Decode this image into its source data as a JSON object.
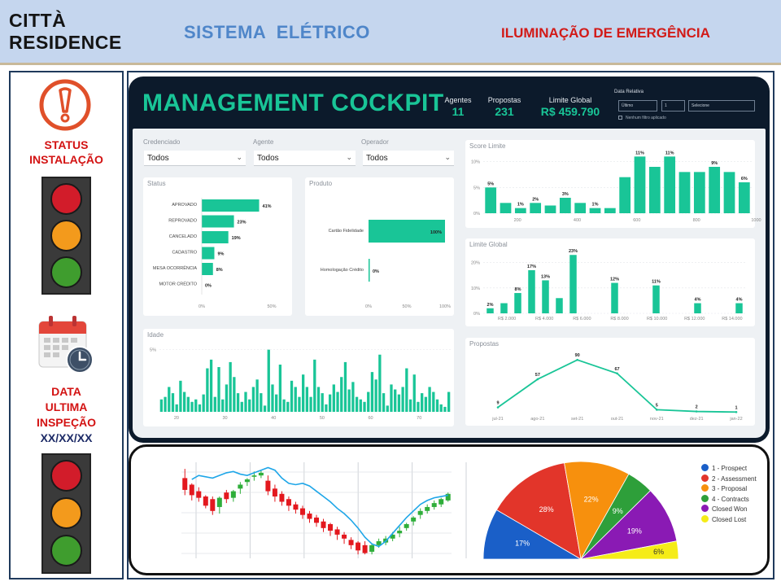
{
  "header": {
    "brand_line1": "CITTÀ",
    "brand_line2": "RESIDENCE",
    "system_title": "SISTEMA  ELÉTRICO",
    "module_title": "ILUMINAÇÃO DE EMERGÊNCIA"
  },
  "left_panel": {
    "status_line1": "STATUS",
    "status_line2": "INSTALAÇÃO",
    "inspection_line1": "DATA",
    "inspection_line2": "ULTIMA",
    "inspection_line3": "INSPEÇÃO",
    "inspection_date": "XX/XX/XX"
  },
  "cockpit": {
    "title": "MANAGEMENT COCKPIT",
    "kpis": [
      {
        "label": "Agentes",
        "value": "11"
      },
      {
        "label": "Propostas",
        "value": "231"
      },
      {
        "label": "Limite Global",
        "value": "R$ 459.790"
      }
    ],
    "date_filter": {
      "label": "Data Relativa",
      "period": "Último",
      "count": "1",
      "unit": "Selecione",
      "checkbox_label": "Nenhum filtro aplicado"
    },
    "filters": [
      {
        "label": "Credenciado",
        "value": "Todos"
      },
      {
        "label": "Agente",
        "value": "Todos"
      },
      {
        "label": "Operador",
        "value": "Todos"
      }
    ]
  },
  "colors": {
    "accent": "#19c597",
    "dark_bg": "#0c1a2b",
    "header_bg": "#c5d6ee",
    "alert_red": "#d21a17",
    "title_blue": "#4f86c9"
  },
  "icons": {
    "status": "alert-circle-icon",
    "inspection": "calendar-clock-icon"
  },
  "chart_data": [
    {
      "type": "bar",
      "orientation": "horizontal",
      "title": "Status",
      "categories": [
        "APROVADO",
        "REPROVADO",
        "CANCELADO",
        "CADASTRO",
        "MESA OCORRÊNCIA",
        "MOTOR CRÉDITO"
      ],
      "values": [
        41,
        23,
        19,
        9,
        8,
        0
      ],
      "value_labels": [
        "41%",
        "23%",
        "19%",
        "9%",
        "8%",
        "0%"
      ],
      "xticks": [
        "0%",
        "50%"
      ],
      "xlim": [
        0,
        50
      ]
    },
    {
      "type": "bar",
      "orientation": "horizontal",
      "title": "Produto",
      "categories": [
        "Cartão Fidelidade",
        "Homologação Crédito"
      ],
      "values": [
        100,
        0
      ],
      "value_labels": [
        "100%",
        "0%"
      ],
      "xticks": [
        "0%",
        "50%",
        "100%"
      ],
      "xlim": [
        0,
        100
      ]
    },
    {
      "type": "bar",
      "title": "Score Limite",
      "x": [
        110,
        160,
        210,
        260,
        310,
        360,
        410,
        460,
        510,
        560,
        610,
        660,
        710,
        760,
        810,
        860,
        910,
        960
      ],
      "values": [
        5,
        2,
        1,
        2,
        1.5,
        3,
        2,
        1,
        1,
        7,
        11,
        9,
        11,
        8,
        8,
        9,
        8,
        6
      ],
      "value_labels": [
        {
          "x": 110,
          "text": "5%"
        },
        {
          "x": 210,
          "text": "1%"
        },
        {
          "x": 260,
          "text": "2%"
        },
        {
          "x": 360,
          "text": "3%"
        },
        {
          "x": 460,
          "text": "1%"
        },
        {
          "x": 610,
          "text": "11%"
        },
        {
          "x": 710,
          "text": "11%"
        },
        {
          "x": 860,
          "text": "9%"
        },
        {
          "x": 960,
          "text": "6%"
        }
      ],
      "xticks": [
        "200",
        "400",
        "600",
        "800",
        "1000"
      ],
      "xtick_values": [
        200,
        400,
        600,
        800,
        1000
      ],
      "yticks": [
        "0%",
        "5%",
        "10%"
      ],
      "ylim": [
        0,
        12
      ]
    },
    {
      "type": "bar",
      "title": "Limite Global",
      "values": [
        2,
        4,
        8,
        17,
        13,
        6,
        23,
        0,
        0,
        12,
        0,
        0,
        11,
        0,
        0,
        4,
        0,
        0,
        4
      ],
      "value_labels": [
        {
          "index": 0,
          "text": "2%"
        },
        {
          "index": 2,
          "text": "8%"
        },
        {
          "index": 3,
          "text": "17%"
        },
        {
          "index": 4,
          "text": "13%"
        },
        {
          "index": 6,
          "text": "23%"
        },
        {
          "index": 9,
          "text": "12%"
        },
        {
          "index": 12,
          "text": "11%"
        },
        {
          "index": 15,
          "text": "4%"
        },
        {
          "index": 18,
          "text": "4%"
        }
      ],
      "xticks": [
        "R$ 2.000",
        "R$ 4.000",
        "R$ 6.000",
        "R$ 8.000",
        "R$ 10.000",
        "R$ 12.000",
        "R$ 14.000"
      ],
      "xtick_values": [
        2000,
        4000,
        6000,
        8000,
        10000,
        12000,
        14000
      ],
      "yticks": [
        "0%",
        "10%",
        "20%"
      ],
      "ylim": [
        0,
        25
      ]
    },
    {
      "type": "bar",
      "title": "Idade",
      "values": [
        1,
        1.2,
        2,
        1.5,
        0.6,
        2.5,
        1.6,
        1.2,
        0.8,
        1,
        0.6,
        1.4,
        3.5,
        4.2,
        1.2,
        3.6,
        1,
        2.2,
        4,
        2.8,
        1.5,
        0.8,
        1.6,
        1,
        2,
        2.6,
        1.5,
        0.5,
        5,
        2.2,
        1.4,
        3.8,
        1,
        0.8,
        2.5,
        2,
        1.2,
        3,
        2,
        1.2,
        4.2,
        2,
        1.5,
        0.6,
        1.4,
        2.2,
        1.6,
        2.8,
        4,
        1.8,
        2.4,
        1.2,
        1,
        0.8,
        1.6,
        3.2,
        2.6,
        4.6,
        1.5,
        0.5,
        2.2,
        1.8,
        1.4,
        2,
        3.5,
        1,
        3,
        0.8,
        1.5,
        1.2,
        2,
        1.6,
        1,
        0.6,
        0.4,
        1.6
      ],
      "xticks": [
        "20",
        "30",
        "40",
        "50",
        "60",
        "70"
      ],
      "xtick_values": [
        20,
        30,
        40,
        50,
        60,
        70
      ],
      "yticks": [
        "5%"
      ],
      "ylim": [
        0,
        5.5
      ]
    },
    {
      "type": "line",
      "title": "Propostas",
      "categories": [
        "jul-21",
        "ago-21",
        "set-21",
        "out-21",
        "nov-21",
        "dez-21",
        "jan-22"
      ],
      "values": [
        9,
        57,
        90,
        67,
        5,
        2,
        1
      ],
      "ylim": [
        0,
        100
      ]
    },
    {
      "type": "pie",
      "shape": "semicircle",
      "series": [
        {
          "name": "1 - Prospect",
          "value": 17,
          "label": "17%",
          "color": "#1a5fc8"
        },
        {
          "name": "2 - Assessment",
          "value": 28,
          "label": "28%",
          "color": "#e2352a"
        },
        {
          "name": "3 - Proposal",
          "value": 22,
          "label": "22%",
          "color": "#f7900d"
        },
        {
          "name": "4 - Contracts",
          "value": 9,
          "label": "9%",
          "color": "#2e9f3a"
        },
        {
          "name": "Closed Won",
          "value": 19,
          "label": "19%",
          "color": "#8a1ab4"
        },
        {
          "name": "Closed Lost",
          "value": 6,
          "label": "6%",
          "color": "#f5ec17"
        }
      ],
      "legend_position": "right"
    },
    {
      "type": "candlestick",
      "candles": [
        [
          58,
          65,
          49,
          45
        ],
        [
          53,
          54,
          45,
          41
        ],
        [
          48,
          51,
          43,
          40
        ],
        [
          44,
          45,
          37,
          35
        ],
        [
          42,
          44,
          33,
          30
        ],
        [
          36,
          44,
          43,
          31
        ],
        [
          47,
          49,
          42,
          39
        ],
        [
          43,
          49,
          48,
          40
        ],
        [
          50,
          55,
          53,
          46
        ],
        [
          55,
          58,
          57,
          52
        ],
        [
          59,
          63,
          60,
          56
        ],
        [
          60,
          64,
          62,
          58
        ],
        [
          56,
          60,
          48,
          45
        ],
        [
          50,
          53,
          44,
          40
        ],
        [
          46,
          48,
          40,
          37
        ],
        [
          42,
          44,
          37,
          33
        ],
        [
          38,
          40,
          34,
          31
        ],
        [
          35,
          37,
          30,
          27
        ],
        [
          31,
          33,
          27,
          24
        ],
        [
          28,
          30,
          24,
          21
        ],
        [
          25,
          27,
          20,
          17
        ],
        [
          23,
          24,
          18,
          14
        ],
        [
          19,
          21,
          15,
          11
        ],
        [
          15,
          17,
          12,
          8
        ],
        [
          11,
          13,
          7,
          4
        ],
        [
          9,
          10,
          3,
          0
        ],
        [
          7,
          10,
          1,
          0
        ],
        [
          2,
          8,
          7,
          0
        ],
        [
          7,
          12,
          10,
          5
        ],
        [
          9,
          14,
          12,
          7
        ],
        [
          12,
          17,
          15,
          10
        ],
        [
          16,
          21,
          18,
          13
        ],
        [
          20,
          24,
          23,
          18
        ],
        [
          25,
          29,
          28,
          22
        ],
        [
          30,
          35,
          33,
          27
        ],
        [
          33,
          38,
          36,
          31
        ],
        [
          36,
          41,
          39,
          34
        ],
        [
          38,
          43,
          42,
          36
        ],
        [
          41,
          47,
          46,
          40
        ]
      ],
      "moving_average": [
        57,
        60,
        59,
        58,
        60,
        62,
        63,
        61,
        60,
        62,
        64,
        66,
        64,
        58,
        54,
        53,
        54,
        52,
        48,
        44,
        40,
        35,
        31,
        26,
        20,
        13,
        8,
        6,
        10,
        16,
        22,
        28,
        33,
        38,
        41,
        43,
        44,
        45
      ]
    }
  ]
}
